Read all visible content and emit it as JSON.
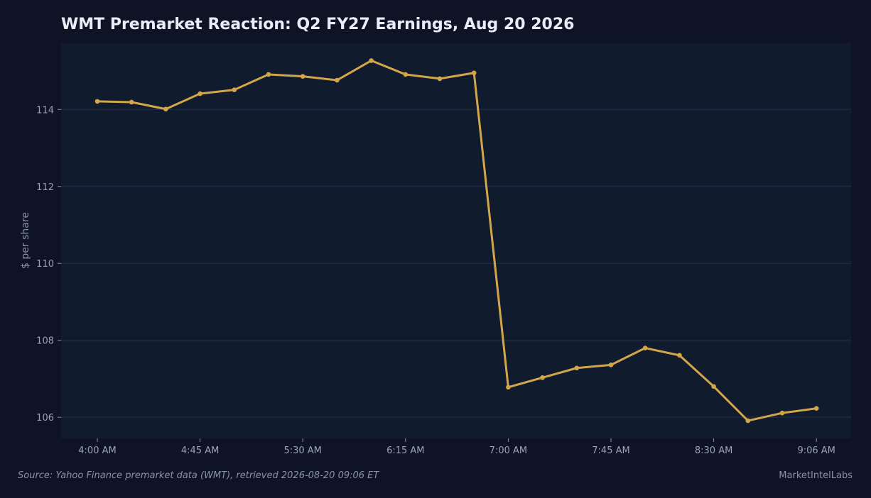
{
  "chart_data": {
    "type": "line",
    "title": "WMT Premarket Reaction: Q2 FY27 Earnings, Aug 20 2026",
    "xlabel": "",
    "ylabel": "$ per share",
    "x_tick_labels": [
      "4:00 AM",
      "4:45 AM",
      "5:30 AM",
      "6:15 AM",
      "7:00 AM",
      "7:45 AM",
      "8:30 AM",
      "9:06 AM"
    ],
    "x": [
      "4:00 AM",
      "4:15 AM",
      "4:30 AM",
      "4:45 AM",
      "5:00 AM",
      "5:15 AM",
      "5:30 AM",
      "5:45 AM",
      "6:00 AM",
      "6:15 AM",
      "6:30 AM",
      "6:45 AM",
      "7:00 AM",
      "7:15 AM",
      "7:30 AM",
      "7:45 AM",
      "8:00 AM",
      "8:15 AM",
      "8:30 AM",
      "8:45 AM",
      "9:00 AM",
      "9:06 AM"
    ],
    "series": [
      {
        "values": [
          114.21,
          114.19,
          114.01,
          114.41,
          114.51,
          114.91,
          114.86,
          114.76,
          115.27,
          114.91,
          114.8,
          114.95,
          106.78,
          107.03,
          107.28,
          107.36,
          107.8,
          107.61,
          106.8,
          105.91,
          106.11,
          106.23
        ]
      }
    ],
    "y_ticks": [
      106,
      108,
      110,
      112,
      114
    ],
    "ylim": [
      105.45,
      115.72
    ],
    "grid": "horizontal",
    "colors": {
      "background": "#0e1425",
      "plot_background": "#111b2e",
      "line": "#d4a64a",
      "grid": "#26304a"
    }
  },
  "footer": {
    "source": "Source: Yahoo Finance premarket data (WMT), retrieved 2026-08-20 09:06 ET",
    "brand": "MarketIntelLabs"
  }
}
